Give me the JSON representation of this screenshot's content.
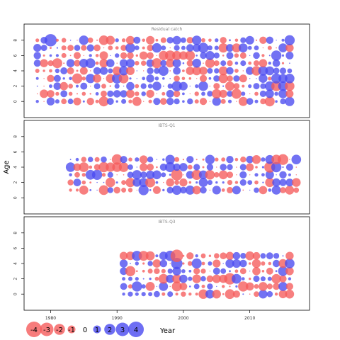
{
  "chart_data": {
    "type": "scatter",
    "subtype": "bubble residual plot",
    "ylabel": "Age",
    "xlabel": "Year",
    "x_ticks": [
      1980,
      1990,
      2000,
      2010
    ],
    "x_range": [
      1976,
      2019
    ],
    "y_ticks": [
      0,
      2,
      4,
      6,
      8
    ],
    "y_range": [
      -1,
      9
    ],
    "colors": {
      "positive": "#4a4af0",
      "negative": "#f55b5b"
    },
    "legend": {
      "values": [
        -4,
        -3,
        -2,
        -1,
        0,
        1,
        2,
        3,
        4
      ],
      "labels": [
        "-4",
        "-3",
        "-2",
        "-1",
        "0",
        "1",
        "2",
        "3",
        "4"
      ]
    },
    "panels": [
      {
        "title": "Residual catch",
        "years": [
          1978,
          2016
        ],
        "ages": [
          0,
          8
        ],
        "seed": 11
      },
      {
        "title": "IBTS-Q1",
        "years": [
          1983,
          2017
        ],
        "ages": [
          1,
          5
        ],
        "seed": 23
      },
      {
        "title": "IBTS-Q3",
        "years": [
          1991,
          2016
        ],
        "ages": [
          0,
          5
        ],
        "seed": 37
      }
    ]
  }
}
